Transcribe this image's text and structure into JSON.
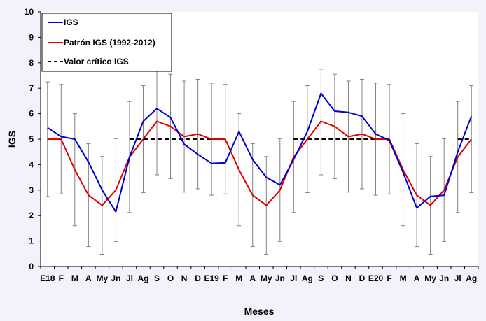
{
  "chart_data": {
    "type": "line",
    "xlabel": "Meses",
    "ylabel": "IGS",
    "ylim": [
      0,
      10
    ],
    "yticks": [
      0,
      1,
      2,
      3,
      4,
      5,
      6,
      7,
      8,
      9,
      10
    ],
    "grid": false,
    "legend_position": "top-left",
    "categories": [
      "E18",
      "F",
      "M",
      "A",
      "My",
      "Jn",
      "Jl",
      "Ag",
      "S",
      "O",
      "N",
      "D",
      "E19",
      "F",
      "M",
      "A",
      "My",
      "Jn",
      "Jl",
      "Ag",
      "S",
      "O",
      "N",
      "D",
      "E20",
      "F",
      "M",
      "A",
      "My",
      "Jn",
      "Jl",
      "Ag"
    ],
    "series": [
      {
        "name": "IGS",
        "color": "#0000cc",
        "style": "solid",
        "values": [
          5.45,
          5.1,
          5.0,
          4.1,
          3.0,
          2.15,
          4.3,
          5.7,
          6.2,
          5.85,
          4.8,
          4.4,
          4.05,
          4.07,
          5.3,
          4.2,
          3.5,
          3.2,
          4.2,
          5.3,
          6.8,
          6.1,
          6.05,
          5.9,
          5.2,
          4.95,
          3.7,
          2.3,
          2.75,
          2.8,
          4.5,
          5.9
        ]
      },
      {
        "name": "Patrón IGS (1992-2012)",
        "color": "#e00000",
        "style": "solid",
        "values": [
          5.0,
          5.0,
          3.8,
          2.8,
          2.4,
          3.0,
          4.3,
          5.0,
          5.7,
          5.5,
          5.1,
          5.2,
          5.0,
          5.0,
          3.8,
          2.8,
          2.4,
          3.0,
          4.3,
          5.0,
          5.7,
          5.5,
          5.1,
          5.2,
          5.0,
          5.0,
          3.8,
          2.8,
          2.4,
          3.0,
          4.3,
          5.0
        ]
      },
      {
        "name": "Valor crítico IGS",
        "color": "#000000",
        "style": "dashed",
        "segments": [
          {
            "from": "E18",
            "to": "F",
            "value": 5
          },
          {
            "from": "Jl",
            "to": "F",
            "value": 5
          },
          {
            "from": "Jl",
            "to": "F",
            "value": 5
          },
          {
            "from": "Jl",
            "to": "Ag",
            "value": 5
          }
        ]
      }
    ],
    "error_bars": {
      "color": "#808080",
      "center": [
        5.0,
        5.0,
        3.8,
        2.8,
        2.4,
        3.0,
        4.3,
        5.0,
        5.7,
        5.5,
        5.1,
        5.2,
        5.0,
        5.0,
        3.8,
        2.8,
        2.4,
        3.0,
        4.3,
        5.0,
        5.7,
        5.5,
        5.1,
        5.2,
        5.0,
        5.0,
        3.8,
        2.8,
        2.4,
        3.0,
        4.3,
        5.0
      ],
      "lower": [
        2.75,
        2.85,
        1.6,
        0.78,
        0.48,
        0.98,
        2.12,
        2.9,
        3.6,
        3.45,
        2.92,
        3.05,
        2.8,
        2.85,
        1.6,
        0.78,
        0.48,
        0.98,
        2.12,
        2.9,
        3.6,
        3.45,
        2.92,
        3.05,
        2.8,
        2.85,
        1.6,
        0.78,
        0.48,
        0.98,
        2.12,
        2.9
      ],
      "upper": [
        7.25,
        7.15,
        6.0,
        4.82,
        4.32,
        5.02,
        6.48,
        7.1,
        7.75,
        7.55,
        7.28,
        7.35,
        7.2,
        7.15,
        6.0,
        4.82,
        4.32,
        5.02,
        6.48,
        7.1,
        7.75,
        7.55,
        7.28,
        7.35,
        7.2,
        7.15,
        6.0,
        4.82,
        4.32,
        5.02,
        6.48,
        7.1
      ]
    }
  }
}
